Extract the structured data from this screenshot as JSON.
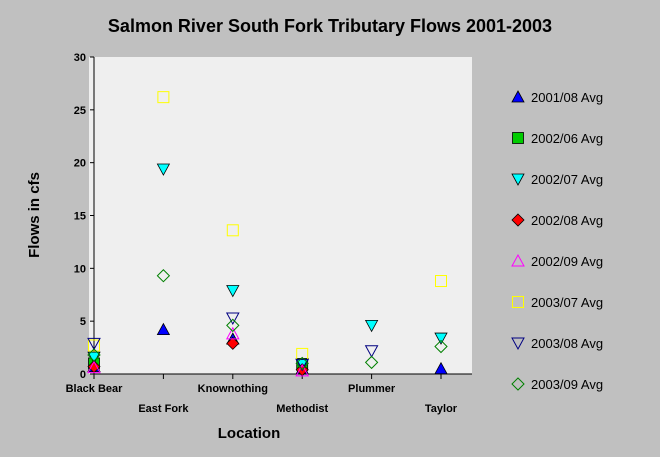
{
  "chart_data": {
    "type": "scatter",
    "title": "Salmon River South Fork Tributary Flows 2001-2003",
    "xlabel": "Location",
    "ylabel": "Flows in cfs",
    "ylim": [
      0,
      30
    ],
    "yticks": [
      0,
      5,
      10,
      15,
      20,
      25,
      30
    ],
    "grid": false,
    "legend_position": "right",
    "categories": [
      "Black Bear",
      "East Fork",
      "Knownothing",
      "Methodist",
      "Plummer",
      "Taylor"
    ],
    "series": [
      {
        "name": "2001/08 Avg",
        "marker": "triangle-up",
        "filled": true,
        "color": "#0000ff",
        "values": [
          0.7,
          4.2,
          3.3,
          0.5,
          null,
          0.5
        ]
      },
      {
        "name": "2002/06 Avg",
        "marker": "square",
        "filled": true,
        "color": "#00cc00",
        "values": [
          1.0,
          null,
          null,
          0.9,
          null,
          null
        ]
      },
      {
        "name": "2002/07 Avg",
        "marker": "triangle-down",
        "filled": true,
        "color": "#00ffff",
        "values": [
          1.6,
          19.4,
          7.9,
          1.0,
          4.6,
          3.4
        ]
      },
      {
        "name": "2002/08 Avg",
        "marker": "diamond",
        "filled": true,
        "color": "#ff0000",
        "values": [
          0.7,
          null,
          2.9,
          0.4,
          null,
          null
        ]
      },
      {
        "name": "2002/09 Avg",
        "marker": "triangle-up",
        "filled": false,
        "color": "#ff00ff",
        "values": [
          0.6,
          null,
          3.8,
          0.3,
          null,
          null
        ]
      },
      {
        "name": "2003/07 Avg",
        "marker": "square",
        "filled": false,
        "color": "#ffff00",
        "values": [
          2.7,
          26.2,
          13.6,
          1.9,
          null,
          8.8
        ]
      },
      {
        "name": "2003/08 Avg",
        "marker": "triangle-down",
        "filled": false,
        "color": "#000080",
        "values": [
          2.9,
          null,
          5.3,
          0.9,
          2.2,
          null
        ]
      },
      {
        "name": "2003/09 Avg",
        "marker": "diamond",
        "filled": false,
        "color": "#008000",
        "values": [
          1.8,
          9.3,
          4.6,
          1.0,
          1.1,
          2.6
        ]
      }
    ]
  }
}
